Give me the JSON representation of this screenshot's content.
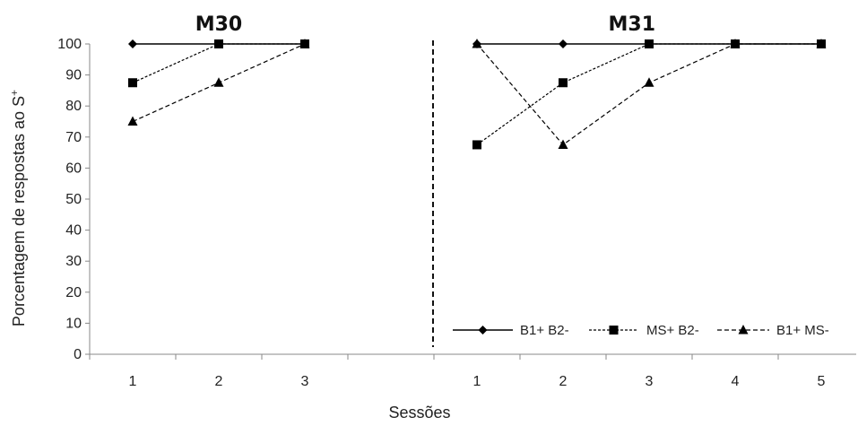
{
  "chart_data": {
    "type": "line",
    "xlabel": "Sessões",
    "ylabel": "Porcentagem de respostas ao S",
    "ylabel_sup": "+",
    "ylim": [
      0,
      100
    ],
    "yticks": [
      0,
      10,
      20,
      30,
      40,
      50,
      60,
      70,
      80,
      90,
      100
    ],
    "legend": {
      "position": "bottom-right"
    },
    "series_styles": [
      {
        "name": "B1+ B2-",
        "marker": "diamond",
        "dash": "solid",
        "color": "#000000"
      },
      {
        "name": "MS+ B2-",
        "marker": "square",
        "dash": "dotted",
        "color": "#000000"
      },
      {
        "name": "B1+ MS-",
        "marker": "triangle",
        "dash": "dashed",
        "color": "#000000"
      }
    ],
    "panels": [
      {
        "title": "M30",
        "x": [
          1,
          2,
          3
        ],
        "series": [
          {
            "name": "B1+ B2-",
            "values": [
              100,
              100,
              100
            ]
          },
          {
            "name": "MS+ B2-",
            "values": [
              87.5,
              100,
              100
            ]
          },
          {
            "name": "B1+ MS-",
            "values": [
              75,
              87.5,
              100
            ]
          }
        ]
      },
      {
        "title": "M31",
        "x": [
          1,
          2,
          3,
          4,
          5
        ],
        "series": [
          {
            "name": "B1+ B2-",
            "values": [
              100,
              100,
              100,
              100,
              100
            ]
          },
          {
            "name": "MS+ B2-",
            "values": [
              67.5,
              87.5,
              100,
              100,
              100
            ]
          },
          {
            "name": "B1+ MS-",
            "values": [
              100,
              67.5,
              87.5,
              100,
              100
            ]
          }
        ]
      }
    ]
  }
}
